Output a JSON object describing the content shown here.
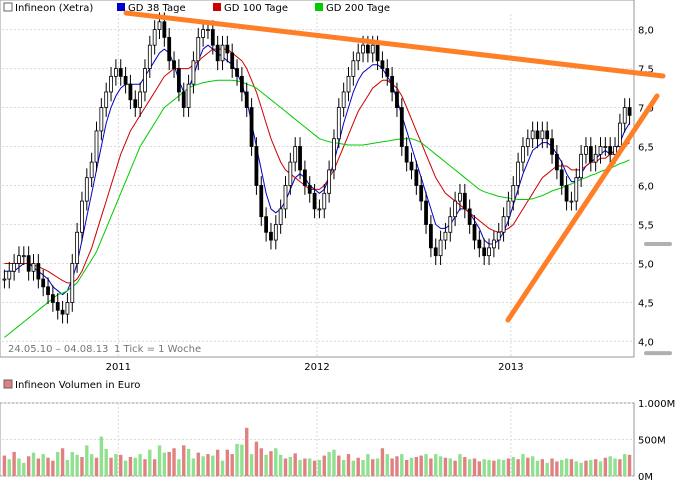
{
  "chart_data": {
    "type": "line",
    "price_panel": {
      "legend": [
        {
          "name": "Infineon (Xetra)",
          "color": "#ffffff"
        },
        {
          "name": "GD 38 Tage",
          "color": "#0000cc"
        },
        {
          "name": "GD 100 Tage",
          "color": "#cc0000"
        },
        {
          "name": "GD 200 Tage",
          "color": "#00cc00"
        }
      ],
      "y_ticks": [
        "8,0",
        "7,5",
        "7,0",
        "6,5",
        "6,0",
        "5,5",
        "5,0",
        "4,5",
        "4,0"
      ],
      "y_range": [
        3.8,
        8.2
      ],
      "x_ticks": [
        "2011",
        "2012",
        "2013"
      ],
      "date_range_text": "24.05.10 – 04.08.13",
      "tick_text": "1 Tick = 1 Woche",
      "colors": {
        "up": "#009900",
        "down": "#cc0000",
        "candle_body": "#000000"
      },
      "series": [
        {
          "name": "Infineon (Xetra)",
          "values": [
            4.8,
            4.9,
            5.0,
            5.1,
            5.1,
            4.9,
            5.0,
            4.8,
            4.7,
            4.6,
            4.5,
            4.4,
            4.35,
            4.5,
            5.0,
            5.4,
            5.8,
            6.1,
            6.3,
            6.7,
            7.0,
            7.2,
            7.4,
            7.5,
            7.4,
            7.3,
            7.1,
            7.0,
            7.2,
            7.5,
            7.8,
            8.0,
            8.1,
            7.9,
            7.6,
            7.5,
            7.2,
            7.0,
            7.3,
            7.6,
            7.9,
            8.0,
            8.0,
            7.8,
            7.6,
            7.8,
            7.7,
            7.5,
            7.4,
            7.2,
            7.0,
            6.5,
            6.0,
            5.6,
            5.4,
            5.3,
            5.5,
            5.7,
            6.0,
            6.3,
            6.5,
            6.2,
            6.0,
            5.9,
            5.7,
            5.7,
            5.9,
            6.2,
            6.6,
            7.0,
            7.2,
            7.4,
            7.6,
            7.7,
            7.8,
            7.7,
            7.8,
            7.6,
            7.5,
            7.4,
            7.2,
            7.0,
            6.5,
            6.3,
            6.2,
            6.0,
            5.8,
            5.5,
            5.2,
            5.1,
            5.3,
            5.4,
            5.6,
            5.8,
            5.9,
            5.7,
            5.5,
            5.3,
            5.2,
            5.1,
            5.2,
            5.3,
            5.4,
            5.6,
            5.8,
            6.0,
            6.3,
            6.5,
            6.6,
            6.7,
            6.6,
            6.7,
            6.6,
            6.4,
            6.2,
            6.0,
            5.8,
            5.8,
            6.1,
            6.4,
            6.5,
            6.3,
            6.4,
            6.5,
            6.5,
            6.4,
            6.5,
            6.8,
            7.0,
            6.9
          ]
        },
        {
          "name": "GD 38 Tage",
          "values": [
            4.9,
            4.9,
            4.9,
            4.95,
            5.0,
            5.0,
            4.95,
            4.9,
            4.85,
            4.8,
            4.7,
            4.65,
            4.6,
            4.65,
            4.8,
            5.0,
            5.3,
            5.6,
            5.9,
            6.2,
            6.5,
            6.8,
            7.0,
            7.15,
            7.25,
            7.3,
            7.3,
            7.3,
            7.3,
            7.4,
            7.5,
            7.6,
            7.7,
            7.75,
            7.7,
            7.55,
            7.35,
            7.2,
            7.25,
            7.4,
            7.6,
            7.75,
            7.8,
            7.75,
            7.7,
            7.65,
            7.6,
            7.55,
            7.45,
            7.3,
            7.1,
            6.8,
            6.5,
            6.2,
            5.9,
            5.7,
            5.65,
            5.7,
            5.8,
            5.95,
            6.1,
            6.15,
            6.1,
            6.0,
            5.95,
            5.9,
            5.95,
            6.1,
            6.3,
            6.55,
            6.8,
            7.0,
            7.2,
            7.35,
            7.45,
            7.5,
            7.55,
            7.55,
            7.5,
            7.4,
            7.3,
            7.1,
            6.9,
            6.7,
            6.5,
            6.3,
            6.1,
            5.9,
            5.7,
            5.5,
            5.45,
            5.45,
            5.5,
            5.6,
            5.7,
            5.7,
            5.65,
            5.55,
            5.45,
            5.3,
            5.25,
            5.25,
            5.3,
            5.4,
            5.55,
            5.75,
            5.95,
            6.15,
            6.3,
            6.45,
            6.5,
            6.55,
            6.55,
            6.5,
            6.4,
            6.3,
            6.15,
            6.05,
            6.05,
            6.15,
            6.25,
            6.3,
            6.35,
            6.4,
            6.45,
            6.4,
            6.45,
            6.55,
            6.7,
            6.8
          ]
        },
        {
          "name": "GD 100 Tage",
          "values": [
            5.0,
            5.0,
            5.0,
            5.0,
            5.0,
            5.0,
            4.98,
            4.96,
            4.93,
            4.9,
            4.86,
            4.82,
            4.78,
            4.75,
            4.75,
            4.8,
            4.9,
            5.05,
            5.2,
            5.4,
            5.6,
            5.8,
            6.0,
            6.2,
            6.4,
            6.55,
            6.7,
            6.8,
            6.9,
            7.0,
            7.1,
            7.2,
            7.3,
            7.4,
            7.45,
            7.5,
            7.5,
            7.5,
            7.5,
            7.55,
            7.6,
            7.65,
            7.7,
            7.75,
            7.75,
            7.75,
            7.75,
            7.7,
            7.65,
            7.6,
            7.5,
            7.35,
            7.2,
            7.0,
            6.8,
            6.6,
            6.45,
            6.3,
            6.2,
            6.15,
            6.1,
            6.05,
            6.0,
            5.95,
            5.95,
            5.95,
            6.0,
            6.1,
            6.2,
            6.35,
            6.5,
            6.65,
            6.8,
            6.95,
            7.05,
            7.15,
            7.25,
            7.3,
            7.35,
            7.35,
            7.3,
            7.25,
            7.15,
            7.0,
            6.85,
            6.7,
            6.55,
            6.4,
            6.25,
            6.1,
            6.0,
            5.9,
            5.85,
            5.8,
            5.75,
            5.7,
            5.65,
            5.6,
            5.55,
            5.5,
            5.45,
            5.42,
            5.4,
            5.42,
            5.45,
            5.5,
            5.6,
            5.7,
            5.8,
            5.9,
            6.0,
            6.1,
            6.15,
            6.2,
            6.25,
            6.25,
            6.25,
            6.2,
            6.2,
            6.2,
            6.25,
            6.3,
            6.3,
            6.35,
            6.35,
            6.4,
            6.4,
            6.45,
            6.5,
            6.55
          ]
        },
        {
          "name": "GD 200 Tage",
          "values": [
            4.05,
            4.1,
            4.15,
            4.2,
            4.25,
            4.3,
            4.35,
            4.4,
            4.45,
            4.5,
            4.55,
            4.6,
            4.62,
            4.65,
            4.7,
            4.75,
            4.85,
            4.95,
            5.05,
            5.15,
            5.3,
            5.45,
            5.6,
            5.75,
            5.9,
            6.05,
            6.2,
            6.35,
            6.5,
            6.6,
            6.7,
            6.8,
            6.9,
            7.0,
            7.05,
            7.1,
            7.15,
            7.2,
            7.25,
            7.28,
            7.3,
            7.32,
            7.33,
            7.34,
            7.35,
            7.35,
            7.35,
            7.35,
            7.34,
            7.33,
            7.3,
            7.28,
            7.25,
            7.2,
            7.15,
            7.1,
            7.05,
            7.0,
            6.95,
            6.9,
            6.85,
            6.8,
            6.75,
            6.7,
            6.65,
            6.6,
            6.58,
            6.56,
            6.55,
            6.54,
            6.53,
            6.52,
            6.52,
            6.52,
            6.52,
            6.53,
            6.54,
            6.55,
            6.56,
            6.57,
            6.58,
            6.59,
            6.6,
            6.6,
            6.6,
            6.58,
            6.55,
            6.5,
            6.45,
            6.4,
            6.35,
            6.3,
            6.25,
            6.2,
            6.15,
            6.1,
            6.05,
            6.0,
            5.95,
            5.92,
            5.9,
            5.88,
            5.86,
            5.85,
            5.84,
            5.83,
            5.82,
            5.82,
            5.82,
            5.83,
            5.85,
            5.87,
            5.9,
            5.93,
            5.95,
            5.97,
            6.0,
            6.02,
            6.05,
            6.08,
            6.1,
            6.13,
            6.15,
            6.18,
            6.2,
            6.22,
            6.25,
            6.28,
            6.3,
            6.33
          ]
        }
      ]
    },
    "volume_panel": {
      "title": "Infineon Volumen in Euro",
      "y_ticks": [
        "1.000M",
        "500M",
        "0M"
      ],
      "y_range": [
        0,
        1000
      ],
      "bar_colors": {
        "up": "#8fe08f",
        "down": "#e08080"
      },
      "values": [
        280,
        230,
        330,
        240,
        180,
        270,
        320,
        240,
        300,
        250,
        210,
        330,
        380,
        220,
        330,
        290,
        260,
        420,
        300,
        250,
        540,
        370,
        250,
        300,
        290,
        210,
        260,
        250,
        300,
        230,
        360,
        230,
        420,
        320,
        330,
        380,
        230,
        420,
        370,
        240,
        320,
        270,
        300,
        280,
        360,
        210,
        360,
        300,
        440,
        430,
        660,
        300,
        470,
        380,
        290,
        340,
        380,
        290,
        240,
        260,
        310,
        220,
        240,
        240,
        210,
        220,
        280,
        330,
        360,
        280,
        220,
        300,
        210,
        250,
        220,
        300,
        230,
        240,
        380,
        300,
        240,
        270,
        300,
        220,
        250,
        260,
        280,
        300,
        240,
        300,
        270,
        250,
        240,
        210,
        300,
        260,
        230,
        240,
        200,
        230,
        220,
        210,
        230,
        220,
        240,
        260,
        230,
        300,
        250,
        270,
        210,
        230,
        180,
        240,
        200,
        220,
        240,
        230,
        200,
        180,
        210,
        220,
        230,
        200,
        250,
        270,
        240,
        230,
        300,
        290
      ],
      "up_flags": [
        0,
        1,
        0,
        1,
        1,
        0,
        1,
        0,
        1,
        0,
        0,
        1,
        0,
        1,
        1,
        1,
        0,
        1,
        1,
        0,
        1,
        1,
        0,
        1,
        0,
        1,
        0,
        1,
        1,
        0,
        1,
        0,
        1,
        1,
        0,
        0,
        1,
        0,
        1,
        1,
        0,
        1,
        0,
        1,
        0,
        1,
        0,
        0,
        1,
        1,
        0,
        1,
        0,
        0,
        1,
        0,
        1,
        1,
        0,
        1,
        0,
        1,
        0,
        1,
        0,
        1,
        0,
        1,
        1,
        0,
        1,
        0,
        1,
        0,
        1,
        1,
        0,
        1,
        0,
        1,
        0,
        0,
        1,
        0,
        1,
        0,
        0,
        1,
        0,
        1,
        1,
        0,
        1,
        0,
        1,
        0,
        1,
        0,
        0,
        1,
        1,
        0,
        1,
        1,
        0,
        1,
        0,
        1,
        0,
        1,
        1,
        0,
        1,
        0,
        0,
        1,
        1,
        0,
        1,
        1,
        0,
        1,
        0,
        1,
        0,
        1,
        1,
        0,
        1,
        0
      ]
    },
    "trendlines": {
      "color": "#ff7f27"
    },
    "support_markers": [
      {
        "value": 5.25,
        "color": "#b0b0b0"
      },
      {
        "value": 3.85,
        "color": "#b0b0b0"
      }
    ]
  }
}
